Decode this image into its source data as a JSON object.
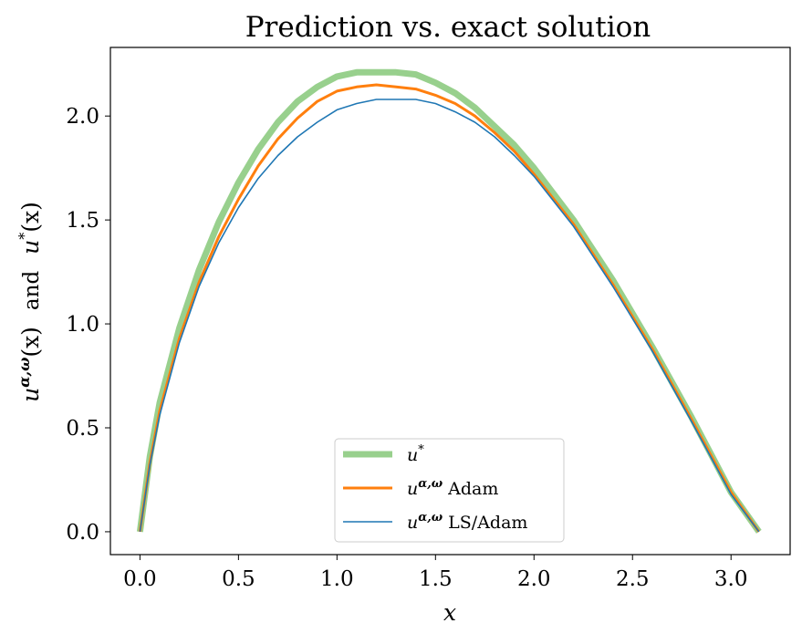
{
  "chart_data": {
    "type": "line",
    "title": "Prediction vs. exact solution",
    "xlabel": "x",
    "ylabel": {
      "part1_base": "u",
      "part1_sup": "α,ω",
      "part1_arg": "(x)",
      "connector": "and",
      "part2_base": "u",
      "part2_sup": "*",
      "part2_arg": "(x)"
    },
    "xlim": [
      -0.15,
      3.3
    ],
    "ylim": [
      -0.11,
      2.33
    ],
    "xticks": [
      "0.0",
      "0.5",
      "1.0",
      "1.5",
      "2.0",
      "2.5",
      "3.0"
    ],
    "yticks": [
      "0.0",
      "0.5",
      "1.0",
      "1.5",
      "2.0"
    ],
    "grid": false,
    "legend_position": "lower center",
    "series": [
      {
        "name_base": "u",
        "name_sup": "*",
        "name_suffix": "",
        "color": "#98d08d",
        "x": [
          0.0,
          0.05,
          0.1,
          0.2,
          0.3,
          0.4,
          0.5,
          0.6,
          0.7,
          0.8,
          0.9,
          1.0,
          1.1,
          1.2,
          1.3,
          1.4,
          1.5,
          1.6,
          1.7,
          1.8,
          1.9,
          2.0,
          2.2,
          2.4,
          2.6,
          2.8,
          3.0,
          3.1416
        ],
        "y": [
          0.0,
          0.36,
          0.62,
          0.98,
          1.26,
          1.49,
          1.68,
          1.84,
          1.97,
          2.07,
          2.14,
          2.19,
          2.21,
          2.21,
          2.21,
          2.2,
          2.16,
          2.11,
          2.04,
          1.95,
          1.86,
          1.75,
          1.5,
          1.21,
          0.89,
          0.55,
          0.19,
          0.0
        ]
      },
      {
        "name_base": "u",
        "name_sup": "α,ω",
        "name_suffix": "Adam",
        "color": "#ff7f0e",
        "x": [
          0.0,
          0.05,
          0.1,
          0.2,
          0.3,
          0.4,
          0.5,
          0.6,
          0.7,
          0.8,
          0.9,
          1.0,
          1.1,
          1.2,
          1.3,
          1.4,
          1.5,
          1.6,
          1.7,
          1.8,
          1.9,
          2.0,
          2.2,
          2.4,
          2.6,
          2.8,
          3.0,
          3.1416
        ],
        "y": [
          0.0,
          0.33,
          0.58,
          0.93,
          1.2,
          1.42,
          1.6,
          1.76,
          1.89,
          1.99,
          2.07,
          2.12,
          2.14,
          2.15,
          2.14,
          2.13,
          2.1,
          2.06,
          2.0,
          1.92,
          1.83,
          1.72,
          1.48,
          1.19,
          0.88,
          0.54,
          0.19,
          0.0
        ]
      },
      {
        "name_base": "u",
        "name_sup": "α,ω",
        "name_suffix": "LS/Adam",
        "color": "#1f77b4",
        "x": [
          0.0,
          0.05,
          0.1,
          0.2,
          0.3,
          0.4,
          0.5,
          0.6,
          0.7,
          0.8,
          0.9,
          1.0,
          1.1,
          1.2,
          1.3,
          1.4,
          1.5,
          1.6,
          1.7,
          1.8,
          1.9,
          2.0,
          2.2,
          2.4,
          2.6,
          2.8,
          3.0,
          3.1416
        ],
        "y": [
          0.0,
          0.32,
          0.56,
          0.91,
          1.18,
          1.39,
          1.56,
          1.7,
          1.81,
          1.9,
          1.97,
          2.03,
          2.06,
          2.08,
          2.08,
          2.08,
          2.06,
          2.02,
          1.97,
          1.9,
          1.81,
          1.71,
          1.47,
          1.18,
          0.87,
          0.53,
          0.18,
          0.0
        ]
      }
    ]
  }
}
